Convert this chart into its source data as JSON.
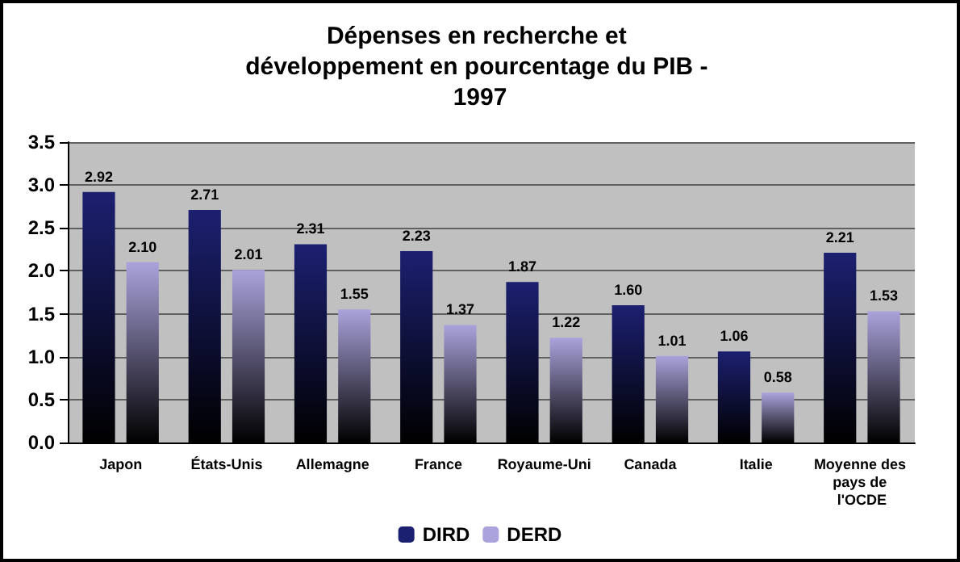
{
  "chart_data": {
    "type": "bar",
    "title": "Dépenses en recherche et développement en pourcentage du PIB - 1997",
    "categories": [
      "Japon",
      "États-Unis",
      "Allemagne",
      "France",
      "Royaume-Uni",
      "Canada",
      "Italie",
      "Moyenne des pays de l'OCDE"
    ],
    "series": [
      {
        "name": "DIRD",
        "color": "#1c2070",
        "values": [
          2.92,
          2.71,
          2.31,
          2.23,
          1.87,
          1.6,
          1.06,
          2.21
        ],
        "value_labels": [
          "2.92",
          "2.71",
          "2.31",
          "2.23",
          "1.87",
          "1.60",
          "1.06",
          "2.21"
        ]
      },
      {
        "name": "DERD",
        "color": "#aaa3dc",
        "values": [
          2.1,
          2.01,
          1.55,
          1.37,
          1.22,
          1.01,
          0.58,
          1.53
        ],
        "value_labels": [
          "2.10",
          "2.01",
          "1.55",
          "1.37",
          "1.22",
          "1.01",
          "0.58",
          "1.53"
        ]
      }
    ],
    "ylim": [
      0,
      3.5
    ],
    "yticks": [
      {
        "value": 0,
        "label": "0.0"
      },
      {
        "value": 0.5,
        "label": "0.5"
      },
      {
        "value": 1,
        "label": "1.0"
      },
      {
        "value": 1.5,
        "label": "1.5"
      },
      {
        "value": 2,
        "label": "2.0"
      },
      {
        "value": 2.5,
        "label": "2.5"
      },
      {
        "value": 3,
        "label": "3.0"
      },
      {
        "value": 3.5,
        "label": "3.5"
      }
    ],
    "grid": "y",
    "legend": "bottom"
  }
}
